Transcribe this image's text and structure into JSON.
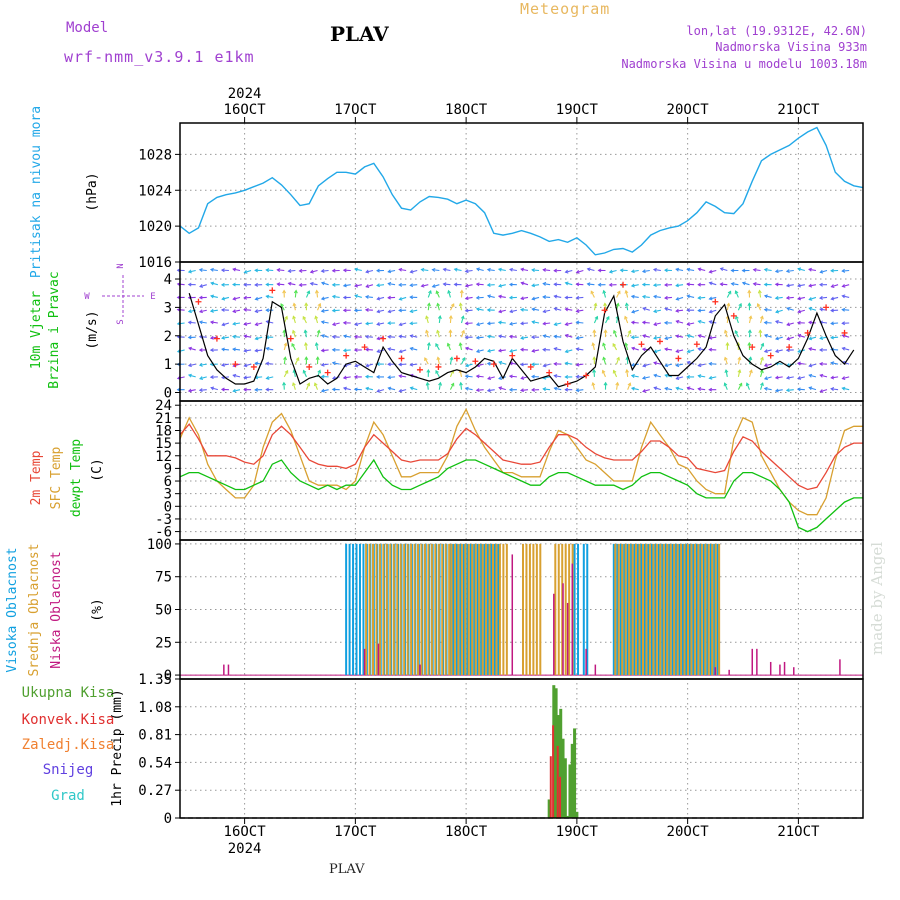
{
  "header": {
    "model_label": "Model",
    "model_name": "wrf-nmm_v3.9.1 e1km",
    "station": "PLAV",
    "title": "Meteogram",
    "coords": "lon,lat (19.9312E, 42.6N)",
    "elevation": "Nadmorska Visina 933m",
    "model_elevation": "Nadmorska Visina u modelu 1003.18m"
  },
  "footer": {
    "station": "PLAV",
    "watermark": "made by Angel"
  },
  "time_axis": {
    "year": "2024",
    "labels": [
      "16OCT",
      "17OCT",
      "18OCT",
      "19OCT",
      "20OCT",
      "21OCT"
    ],
    "hours": [
      12,
      36,
      60,
      84,
      108,
      132
    ],
    "range_hours": [
      -2,
      146
    ]
  },
  "colors": {
    "pressure": "#22a8e8",
    "wind_speed": "#000000",
    "wind_gust": "#ff3020",
    "temp_2m": "#e84838",
    "temp_sfc": "#d8a030",
    "dewpoint": "#10c010",
    "cloud_high": "#10a0e0",
    "cloud_mid": "#d8a030",
    "cloud_low": "#c01880",
    "precip_total": "#50a030",
    "precip_conv": "#e03030",
    "precip_frz": "#f08030",
    "precip_snow": "#6040e0",
    "precip_grad": "#30c8c8"
  },
  "chart_data": [
    {
      "type": "line",
      "id": "pressure",
      "ylabel_title": "Pritisak na nivou mora",
      "ylabel_unit": "(hPa)",
      "ylim": [
        1016,
        1031.5
      ],
      "yticks": [
        1016,
        1020,
        1024,
        1028
      ],
      "series": [
        {
          "x": [
            -2,
            0,
            2,
            4,
            6,
            8,
            10,
            12,
            14,
            16,
            18,
            20,
            22,
            24,
            26,
            28,
            30,
            32,
            34,
            36,
            38,
            40,
            42,
            44,
            46,
            48,
            50,
            52,
            54,
            56,
            58,
            60,
            62,
            64,
            66,
            68,
            70,
            72,
            74,
            76,
            78,
            80,
            82,
            84,
            86,
            88,
            90,
            92,
            94,
            96,
            98,
            100,
            102,
            104,
            106,
            108,
            110,
            112,
            114,
            116,
            118,
            120,
            122,
            124,
            126,
            128,
            130,
            132,
            134,
            136,
            138,
            140,
            142,
            144,
            146
          ],
          "values": [
            1020,
            1019.2,
            1019.8,
            1022.5,
            1023.2,
            1023.5,
            1023.7,
            1024,
            1024.4,
            1024.8,
            1025.4,
            1024.6,
            1023.5,
            1022.3,
            1022.5,
            1024.5,
            1025.3,
            1026,
            1026,
            1025.8,
            1026.6,
            1027,
            1025.5,
            1023.5,
            1022,
            1021.8,
            1022.7,
            1023.3,
            1023.2,
            1023,
            1022.5,
            1022.9,
            1022.5,
            1021.5,
            1019.2,
            1019,
            1019.2,
            1019.5,
            1019.2,
            1018.8,
            1018.3,
            1018.5,
            1018.2,
            1018.7,
            1017.9,
            1016.8,
            1017,
            1017.4,
            1017.5,
            1017.1,
            1017.9,
            1019,
            1019.5,
            1019.8,
            1020,
            1020.6,
            1021.5,
            1022.7,
            1022.2,
            1021.5,
            1021.4,
            1022.5,
            1025,
            1027.3,
            1028,
            1028.5,
            1029,
            1029.8,
            1030.5,
            1031,
            1029,
            1026,
            1025,
            1024.5,
            1024.3
          ]
        }
      ]
    },
    {
      "type": "line",
      "id": "wind",
      "ylabel_title": "10m Vjetar",
      "ylabel_sub": "Brzina i Pravac",
      "ylabel_unit": "(m/s)",
      "compass": {
        "n": "N",
        "s": "S",
        "w": "W",
        "e": "E"
      },
      "ylim": [
        -0.3,
        4.6
      ],
      "yticks": [
        0,
        1,
        2,
        3,
        4
      ],
      "series": [
        {
          "name": "Brzina",
          "x": [
            0,
            2,
            4,
            6,
            8,
            10,
            12,
            14,
            16,
            18,
            20,
            22,
            24,
            26,
            28,
            30,
            32,
            34,
            36,
            38,
            40,
            42,
            44,
            46,
            48,
            50,
            52,
            54,
            56,
            58,
            60,
            62,
            64,
            66,
            68,
            70,
            72,
            74,
            76,
            78,
            80,
            82,
            84,
            86,
            88,
            90,
            92,
            94,
            96,
            98,
            100,
            102,
            104,
            106,
            108,
            110,
            112,
            114,
            116,
            118,
            120,
            122,
            124,
            126,
            128,
            130,
            132,
            134,
            136,
            138,
            140,
            142,
            144
          ],
          "values": [
            3.5,
            2.4,
            1.3,
            0.8,
            0.5,
            0.3,
            0.3,
            0.4,
            1.2,
            3.2,
            3.0,
            1.2,
            0.3,
            0.5,
            0.6,
            0.3,
            0.5,
            1.0,
            1.1,
            0.9,
            0.7,
            1.6,
            1.1,
            0.7,
            0.6,
            0.5,
            0.4,
            0.5,
            0.7,
            0.8,
            0.7,
            0.9,
            1.2,
            1.1,
            0.5,
            1.2,
            0.8,
            0.4,
            0.5,
            0.6,
            0.2,
            0.3,
            0.4,
            0.6,
            0.9,
            2.8,
            3.4,
            1.8,
            0.8,
            1.3,
            1.6,
            1.1,
            0.6,
            0.6,
            0.9,
            1.2,
            1.6,
            2.7,
            3.1,
            2.0,
            1.3,
            1.0,
            0.8,
            0.9,
            1.1,
            0.9,
            1.2,
            1.9,
            2.8,
            2.0,
            1.3,
            1.0,
            1.5
          ]
        },
        {
          "name": "Udar",
          "x": [
            2,
            6,
            10,
            14,
            18,
            22,
            26,
            30,
            34,
            38,
            42,
            46,
            50,
            54,
            58,
            62,
            66,
            70,
            74,
            78,
            82,
            86,
            90,
            94,
            98,
            102,
            106,
            110,
            114,
            118,
            122,
            126,
            130,
            134,
            138,
            142
          ],
          "values": [
            3.2,
            1.9,
            1.0,
            0.9,
            3.6,
            1.9,
            0.9,
            0.7,
            1.3,
            1.6,
            1.9,
            1.2,
            0.8,
            0.9,
            1.2,
            1.1,
            1.0,
            1.3,
            0.9,
            0.7,
            0.3,
            0.6,
            2.9,
            3.8,
            1.7,
            1.8,
            1.2,
            1.7,
            3.2,
            2.7,
            1.6,
            1.3,
            1.6,
            2.1,
            3.0,
            2.1
          ]
        }
      ]
    },
    {
      "type": "line",
      "id": "temperature",
      "ylabels": [
        "2m Temp",
        "SFC Temp",
        "dewpt Temp"
      ],
      "ylabel_unit": "(C)",
      "ylim": [
        -8,
        25
      ],
      "yticks": [
        -6,
        -3,
        0,
        3,
        6,
        9,
        12,
        15,
        18,
        21,
        24
      ],
      "x": [
        -2,
        0,
        2,
        4,
        6,
        8,
        10,
        12,
        14,
        16,
        18,
        20,
        22,
        24,
        26,
        28,
        30,
        32,
        34,
        36,
        38,
        40,
        42,
        44,
        46,
        48,
        50,
        52,
        54,
        56,
        58,
        60,
        62,
        64,
        66,
        68,
        70,
        72,
        74,
        76,
        78,
        80,
        82,
        84,
        86,
        88,
        90,
        92,
        94,
        96,
        98,
        100,
        102,
        104,
        106,
        108,
        110,
        112,
        114,
        116,
        118,
        120,
        122,
        124,
        126,
        128,
        130,
        132,
        134,
        136,
        138,
        140,
        142,
        144,
        146
      ],
      "series": [
        {
          "name": "2m Temp",
          "values": [
            17,
            19.5,
            16,
            12,
            12,
            12,
            11.5,
            10.5,
            10,
            12,
            17,
            19,
            17,
            14,
            11,
            10,
            9.5,
            9.5,
            9,
            10,
            14,
            17,
            15,
            13,
            11,
            10.5,
            11,
            11,
            11,
            12.5,
            16,
            18.5,
            17,
            15,
            13,
            11,
            10.5,
            10,
            10,
            10.5,
            14,
            17,
            17,
            16,
            14,
            12.5,
            11.5,
            11,
            11,
            11,
            13,
            15.5,
            15.5,
            14,
            12,
            11.5,
            9,
            8.5,
            8,
            8.5,
            13,
            16.5,
            15.5,
            13,
            11,
            9,
            7,
            5,
            4,
            4.5,
            8,
            12,
            14,
            15,
            15
          ]
        },
        {
          "name": "SFC Temp",
          "values": [
            16,
            21,
            17,
            10,
            6,
            4,
            2,
            2,
            5,
            14,
            20,
            22,
            18,
            12,
            6,
            5,
            5,
            5,
            4,
            6,
            14,
            20,
            17,
            12,
            7,
            7,
            8,
            8,
            8,
            12,
            19,
            23,
            18,
            14,
            11,
            8,
            8,
            7,
            7,
            7,
            13,
            18,
            17,
            14,
            11,
            10,
            8,
            6,
            6,
            6,
            14,
            20,
            17,
            14,
            10,
            9,
            6,
            4,
            3,
            3,
            16,
            21,
            20,
            12,
            8,
            4,
            1,
            -1,
            -2,
            -2,
            2,
            11,
            18,
            19,
            19
          ]
        },
        {
          "name": "dewpt Temp",
          "values": [
            7,
            8,
            8,
            7,
            6,
            5,
            4,
            4,
            5,
            6,
            10,
            11,
            8,
            6,
            5,
            4,
            5,
            4,
            5,
            5,
            8,
            11,
            7,
            5,
            4,
            4,
            5,
            6,
            7,
            9,
            10,
            11,
            11,
            10,
            9,
            8,
            7,
            6,
            5,
            5,
            7,
            8,
            8,
            7,
            6,
            5,
            5,
            5,
            4,
            5,
            7,
            8,
            8,
            7,
            6,
            5,
            3,
            2,
            2,
            2,
            6,
            8,
            8,
            7,
            6,
            4,
            1,
            -5,
            -6,
            -5,
            -3,
            -1,
            1,
            2,
            2
          ]
        }
      ]
    },
    {
      "type": "bar",
      "id": "clouds",
      "ylabels": [
        "Visoka Oblacnost",
        "Srednja Oblacnost",
        "Niska Oblacnost"
      ],
      "ylabel_unit": "(%)",
      "ylim": [
        -3,
        103
      ],
      "yticks": [
        0,
        25,
        50,
        75,
        100
      ],
      "series": [
        {
          "name": "Visoka Oblacnost",
          "segments": [
            {
              "from": 34,
              "to": 56,
              "value": 100
            },
            {
              "from": 56.5,
              "to": 67,
              "value": 100
            },
            {
              "from": 83.5,
              "to": 84.8,
              "value": 100
            },
            {
              "from": 85.5,
              "to": 86.5,
              "value": 100
            },
            {
              "from": 92,
              "to": 114.5,
              "value": 100
            }
          ]
        },
        {
          "name": "Srednja Oblacnost",
          "segments": [
            {
              "from": 38,
              "to": 56,
              "value": 100
            },
            {
              "from": 56.5,
              "to": 69,
              "value": 100
            },
            {
              "from": 72,
              "to": 76,
              "value": 100
            },
            {
              "from": 79,
              "to": 83,
              "value": 100
            },
            {
              "from": 92,
              "to": 114.5,
              "value": 100
            }
          ]
        },
        {
          "name": "Niska Oblacnost",
          "points": [
            {
              "x": 7.5,
              "value": 8
            },
            {
              "x": 8.5,
              "value": 8
            },
            {
              "x": 38,
              "value": 20
            },
            {
              "x": 41,
              "value": 24
            },
            {
              "x": 50,
              "value": 8
            },
            {
              "x": 70,
              "value": 92
            },
            {
              "x": 79,
              "value": 62
            },
            {
              "x": 81,
              "value": 70
            },
            {
              "x": 82,
              "value": 55
            },
            {
              "x": 83,
              "value": 85
            },
            {
              "x": 86,
              "value": 20
            },
            {
              "x": 88,
              "value": 8
            },
            {
              "x": 114,
              "value": 6
            },
            {
              "x": 117,
              "value": 4
            },
            {
              "x": 122,
              "value": 20
            },
            {
              "x": 123,
              "value": 20
            },
            {
              "x": 126,
              "value": 10
            },
            {
              "x": 128,
              "value": 8
            },
            {
              "x": 129,
              "value": 10
            },
            {
              "x": 131,
              "value": 6
            },
            {
              "x": 141,
              "value": 12
            }
          ]
        }
      ]
    },
    {
      "type": "bar",
      "id": "precip",
      "ylabel_unit": "1hr Precip (mm)",
      "legend": [
        "Ukupna Kisa",
        "Konvek.Kisa",
        "Zaledj.Kisa",
        "Snijeg",
        "Grad"
      ],
      "ylim": [
        0,
        1.35
      ],
      "yticks": [
        0,
        0.27,
        0.54,
        0.81,
        1.08,
        1.35
      ],
      "series": [
        {
          "name": "Ukupna Kisa",
          "x": [
            78,
            79,
            79.5,
            80,
            80.5,
            81,
            81.5,
            82,
            82.5,
            83,
            83.5,
            84
          ],
          "values": [
            0.18,
            1.29,
            1.26,
            1.0,
            1.06,
            0.77,
            0.58,
            0.02,
            0.52,
            0.72,
            0.87,
            0.06
          ]
        },
        {
          "name": "Konvek.Kisa",
          "x": [
            79,
            79.5,
            80.5,
            81
          ],
          "values": [
            0.6,
            0.9,
            0.7,
            0.4
          ]
        }
      ]
    }
  ]
}
